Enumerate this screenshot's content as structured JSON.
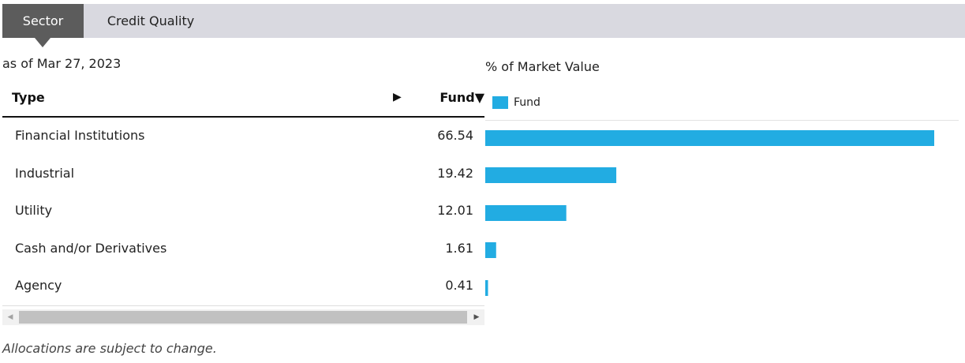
{
  "tabs": [
    {
      "label": "Sector",
      "active": true
    },
    {
      "label": "Credit Quality",
      "active": false
    }
  ],
  "as_of": "as of Mar 27, 2023",
  "table": {
    "col_type": "Type",
    "col_type_arrow": "▶",
    "col_fund": "Fund▼",
    "rows": [
      {
        "type": "Financial Institutions",
        "fund": "66.54"
      },
      {
        "type": "Industrial",
        "fund": "19.42"
      },
      {
        "type": "Utility",
        "fund": "12.01"
      },
      {
        "type": "Cash and/or Derivatives",
        "fund": "1.61"
      },
      {
        "type": "Agency",
        "fund": "0.41"
      }
    ]
  },
  "chart_data": {
    "type": "bar",
    "orientation": "horizontal",
    "title": "% of Market Value",
    "categories": [
      "Financial Institutions",
      "Industrial",
      "Utility",
      "Cash and/or Derivatives",
      "Agency"
    ],
    "series": [
      {
        "name": "Fund",
        "values": [
          66.54,
          19.42,
          12.01,
          1.61,
          0.41
        ],
        "color": "#22ace2"
      }
    ],
    "legend": "top-left",
    "grid": false
  },
  "scrollbar": {
    "left_icon": "◀",
    "right_icon": "▶"
  },
  "footnote": "Allocations are subject to change."
}
